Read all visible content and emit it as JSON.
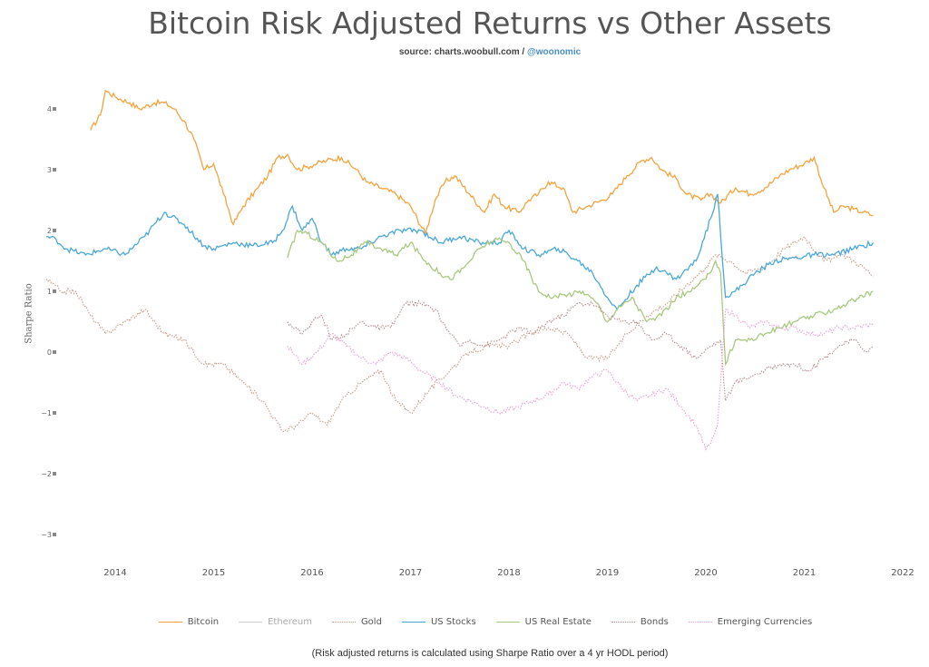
{
  "title": "Bitcoin Risk Adjusted Returns vs Other Assets",
  "source": {
    "prefix": "source: charts.woobull.com / ",
    "handle": "@woonomic"
  },
  "footnote": "(Risk adjusted returns is calculated using Sharpe Ratio over a 4 yr HODL period)",
  "chart_data": {
    "type": "line",
    "ylabel": "Sharpe Ratio",
    "xlabel": "",
    "xlim": [
      2013.3,
      2021.9
    ],
    "ylim": [
      -3.4,
      4.5
    ],
    "x_ticks": [
      "2014",
      "2015",
      "2016",
      "2017",
      "2018",
      "2019",
      "2020",
      "2021",
      "2022"
    ],
    "y_ticks": [
      "4",
      "3",
      "2",
      "1",
      "0",
      "−1",
      "−2",
      "−3"
    ],
    "grid": false,
    "legend_position": "bottom",
    "series": [
      {
        "name": "Bitcoin",
        "color": "#f5a33c",
        "dash": "solid",
        "x": [
          2013.75,
          2013.85,
          2013.9,
          2014.0,
          2014.15,
          2014.25,
          2014.4,
          2014.5,
          2014.6,
          2014.7,
          2014.8,
          2014.9,
          2015.0,
          2015.1,
          2015.2,
          2015.3,
          2015.45,
          2015.55,
          2015.65,
          2015.75,
          2015.85,
          2015.95,
          2016.05,
          2016.15,
          2016.3,
          2016.45,
          2016.55,
          2016.7,
          2016.85,
          2017.0,
          2017.15,
          2017.25,
          2017.35,
          2017.45,
          2017.6,
          2017.75,
          2017.85,
          2017.95,
          2018.1,
          2018.2,
          2018.3,
          2018.4,
          2018.55,
          2018.65,
          2018.8,
          2018.95,
          2019.05,
          2019.2,
          2019.35,
          2019.45,
          2019.55,
          2019.7,
          2019.8,
          2019.95,
          2020.05,
          2020.15,
          2020.3,
          2020.45,
          2020.6,
          2020.75,
          2020.85,
          2021.0,
          2021.1,
          2021.2,
          2021.3,
          2021.4,
          2021.5,
          2021.6,
          2021.7
        ],
        "y": [
          3.65,
          3.9,
          4.3,
          4.2,
          4.1,
          4.0,
          4.1,
          4.1,
          4.0,
          3.8,
          3.5,
          3.0,
          3.1,
          2.6,
          2.1,
          2.4,
          2.7,
          2.9,
          3.2,
          3.25,
          3.0,
          3.05,
          3.1,
          3.15,
          3.2,
          3.0,
          2.8,
          2.7,
          2.6,
          2.4,
          1.95,
          2.5,
          2.8,
          2.9,
          2.6,
          2.3,
          2.6,
          2.4,
          2.3,
          2.5,
          2.6,
          2.8,
          2.7,
          2.3,
          2.4,
          2.5,
          2.6,
          2.9,
          3.15,
          3.2,
          3.0,
          2.85,
          2.6,
          2.5,
          2.6,
          2.45,
          2.7,
          2.6,
          2.7,
          2.9,
          3.0,
          3.1,
          3.2,
          2.7,
          2.3,
          2.4,
          2.35,
          2.3,
          2.25
        ]
      },
      {
        "name": "Ethereum",
        "color": "#cccccc",
        "dash": "solid",
        "x": [],
        "y": []
      },
      {
        "name": "Gold",
        "color": "#c89a86",
        "dash": "dotted",
        "x": [
          2013.3,
          2013.45,
          2013.6,
          2013.75,
          2013.9,
          2014.1,
          2014.3,
          2014.5,
          2014.7,
          2014.9,
          2015.1,
          2015.3,
          2015.5,
          2015.7,
          2015.85,
          2016.0,
          2016.15,
          2016.3,
          2016.5,
          2016.7,
          2016.85,
          2017.0,
          2017.2,
          2017.4,
          2017.6,
          2017.8,
          2018.0,
          2018.2,
          2018.4,
          2018.6,
          2018.8,
          2019.0,
          2019.2,
          2019.4,
          2019.6,
          2019.8,
          2020.0,
          2020.1,
          2020.25,
          2020.4,
          2020.6,
          2020.8,
          2021.0,
          2021.2,
          2021.4,
          2021.6,
          2021.7
        ],
        "y": [
          1.2,
          1.0,
          1.0,
          0.6,
          0.3,
          0.5,
          0.7,
          0.3,
          0.2,
          -0.2,
          -0.2,
          -0.5,
          -0.8,
          -1.3,
          -1.2,
          -1.0,
          -1.2,
          -0.8,
          -0.5,
          -0.3,
          -0.8,
          -1.0,
          -0.6,
          -0.3,
          0.0,
          0.1,
          0.1,
          0.3,
          0.4,
          0.3,
          -0.1,
          -0.1,
          0.3,
          0.6,
          0.8,
          1.1,
          1.4,
          1.6,
          1.5,
          1.3,
          1.4,
          1.7,
          1.9,
          1.5,
          1.6,
          1.4,
          1.25
        ]
      },
      {
        "name": "US Stocks",
        "color": "#4aa8d8",
        "dash": "solid",
        "x": [
          2013.3,
          2013.4,
          2013.5,
          2013.7,
          2013.9,
          2014.1,
          2014.3,
          2014.5,
          2014.7,
          2014.9,
          2015.0,
          2015.2,
          2015.4,
          2015.6,
          2015.7,
          2015.8,
          2015.9,
          2016.0,
          2016.1,
          2016.2,
          2016.35,
          2016.5,
          2016.7,
          2016.9,
          2017.1,
          2017.3,
          2017.5,
          2017.7,
          2017.9,
          2018.0,
          2018.15,
          2018.3,
          2018.5,
          2018.7,
          2018.85,
          2019.0,
          2019.1,
          2019.3,
          2019.5,
          2019.7,
          2019.9,
          2020.05,
          2020.12,
          2020.2,
          2020.3,
          2020.5,
          2020.7,
          2020.9,
          2021.1,
          2021.3,
          2021.5,
          2021.7
        ],
        "y": [
          1.9,
          1.85,
          1.7,
          1.6,
          1.7,
          1.6,
          1.9,
          2.3,
          2.1,
          1.75,
          1.7,
          1.8,
          1.75,
          1.8,
          2.0,
          2.4,
          2.0,
          2.2,
          1.8,
          1.6,
          1.7,
          1.7,
          1.9,
          2.0,
          2.0,
          1.8,
          1.9,
          1.8,
          1.8,
          2.0,
          1.7,
          1.6,
          1.7,
          1.5,
          1.3,
          0.9,
          0.7,
          1.1,
          1.4,
          1.2,
          1.5,
          2.2,
          2.6,
          0.9,
          1.0,
          1.3,
          1.5,
          1.55,
          1.6,
          1.6,
          1.7,
          1.8
        ]
      },
      {
        "name": "US Real Estate",
        "color": "#a8c97f",
        "dash": "solid",
        "x": [
          2015.75,
          2015.85,
          2015.95,
          2016.1,
          2016.25,
          2016.4,
          2016.55,
          2016.7,
          2016.85,
          2017.0,
          2017.15,
          2017.3,
          2017.4,
          2017.55,
          2017.7,
          2017.85,
          2018.0,
          2018.15,
          2018.3,
          2018.45,
          2018.6,
          2018.75,
          2018.9,
          2019.0,
          2019.1,
          2019.25,
          2019.4,
          2019.55,
          2019.7,
          2019.85,
          2020.0,
          2020.1,
          2020.15,
          2020.2,
          2020.3,
          2020.45,
          2020.6,
          2020.75,
          2020.9,
          2021.1,
          2021.3,
          2021.5,
          2021.7
        ],
        "y": [
          1.55,
          2.0,
          1.95,
          1.8,
          1.5,
          1.6,
          1.8,
          1.7,
          1.6,
          1.8,
          1.5,
          1.3,
          1.2,
          1.4,
          1.7,
          1.85,
          1.8,
          1.5,
          1.0,
          0.9,
          0.95,
          1.0,
          0.8,
          0.5,
          0.7,
          0.9,
          0.5,
          0.6,
          0.9,
          1.0,
          1.2,
          1.5,
          1.3,
          -0.2,
          0.2,
          0.2,
          0.3,
          0.4,
          0.5,
          0.6,
          0.7,
          0.85,
          1.0
        ]
      },
      {
        "name": "Bonds",
        "color": "#b88a8a",
        "dash": "dotted",
        "x": [
          2015.75,
          2015.9,
          2016.0,
          2016.1,
          2016.2,
          2016.35,
          2016.5,
          2016.65,
          2016.8,
          2016.95,
          2017.1,
          2017.25,
          2017.4,
          2017.5,
          2017.6,
          2017.75,
          2017.9,
          2018.1,
          2018.25,
          2018.4,
          2018.55,
          2018.7,
          2018.85,
          2019.0,
          2019.15,
          2019.3,
          2019.45,
          2019.6,
          2019.75,
          2019.9,
          2020.05,
          2020.15,
          2020.2,
          2020.3,
          2020.45,
          2020.6,
          2020.75,
          2020.9,
          2021.05,
          2021.2,
          2021.35,
          2021.5,
          2021.65,
          2021.7
        ],
        "y": [
          0.5,
          0.3,
          0.5,
          0.6,
          0.2,
          0.3,
          0.5,
          0.4,
          0.4,
          0.8,
          0.8,
          0.7,
          0.3,
          0.1,
          0.2,
          0.1,
          0.2,
          0.4,
          0.3,
          0.5,
          0.6,
          0.8,
          0.8,
          0.6,
          0.5,
          0.5,
          0.2,
          0.3,
          0.1,
          -0.1,
          0.1,
          0.2,
          -0.8,
          -0.5,
          -0.4,
          -0.3,
          -0.2,
          -0.2,
          -0.3,
          -0.1,
          0.1,
          0.2,
          0.0,
          0.1
        ]
      },
      {
        "name": "Emerging Currencies",
        "color": "#e99fd8",
        "dash": "dotted",
        "x": [
          2015.75,
          2015.9,
          2016.05,
          2016.2,
          2016.35,
          2016.5,
          2016.65,
          2016.8,
          2016.95,
          2017.1,
          2017.3,
          2017.45,
          2017.6,
          2017.75,
          2017.9,
          2018.1,
          2018.25,
          2018.4,
          2018.55,
          2018.7,
          2018.85,
          2019.0,
          2019.15,
          2019.3,
          2019.45,
          2019.6,
          2019.75,
          2019.9,
          2020.0,
          2020.05,
          2020.12,
          2020.2,
          2020.3,
          2020.45,
          2020.6,
          2020.75,
          2020.9,
          2021.05,
          2021.2,
          2021.35,
          2021.5,
          2021.7
        ],
        "y": [
          0.1,
          -0.2,
          0.0,
          0.3,
          0.1,
          -0.1,
          -0.2,
          0.0,
          -0.1,
          -0.3,
          -0.5,
          -0.7,
          -0.8,
          -0.9,
          -1.0,
          -0.9,
          -0.8,
          -0.7,
          -0.5,
          -0.6,
          -0.4,
          -0.3,
          -0.6,
          -0.8,
          -0.7,
          -0.6,
          -0.9,
          -1.2,
          -1.6,
          -1.5,
          -1.2,
          0.7,
          0.6,
          0.4,
          0.5,
          0.4,
          0.4,
          0.3,
          0.3,
          0.4,
          0.4,
          0.45
        ]
      }
    ]
  }
}
